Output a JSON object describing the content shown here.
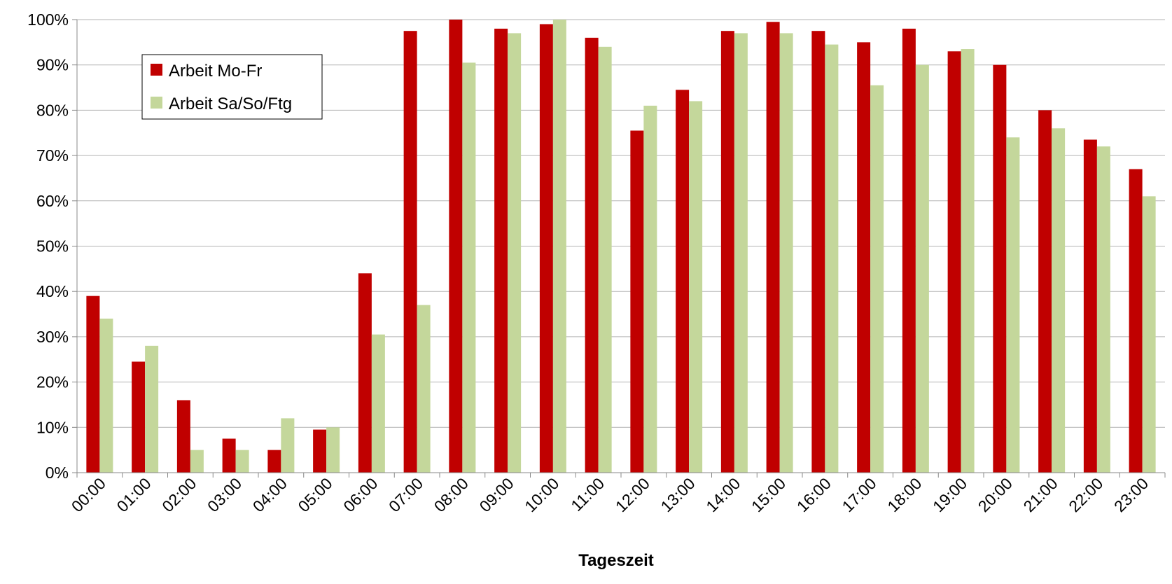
{
  "chart_data": {
    "type": "bar",
    "title": "",
    "xlabel": "Tageszeit",
    "ylabel": "",
    "ylim": [
      0,
      100
    ],
    "yticks": [
      "0%",
      "10%",
      "20%",
      "30%",
      "40%",
      "50%",
      "60%",
      "70%",
      "80%",
      "90%",
      "100%"
    ],
    "grid": true,
    "legend_position": "top-left",
    "categories": [
      "00:00",
      "01:00",
      "02:00",
      "03:00",
      "04:00",
      "05:00",
      "06:00",
      "07:00",
      "08:00",
      "09:00",
      "10:00",
      "11:00",
      "12:00",
      "13:00",
      "14:00",
      "15:00",
      "16:00",
      "17:00",
      "18:00",
      "19:00",
      "20:00",
      "21:00",
      "22:00",
      "23:00"
    ],
    "series": [
      {
        "name": "Arbeit Mo-Fr",
        "color": "#c00000",
        "values": [
          39,
          24.5,
          16,
          7.5,
          5,
          9.5,
          44,
          97.5,
          100,
          98,
          99,
          96,
          75.5,
          84.5,
          97.5,
          99.5,
          97.5,
          95,
          98,
          93,
          90,
          80,
          73.5,
          67
        ]
      },
      {
        "name": "Arbeit Sa/So/Ftg",
        "color": "#c4d79b",
        "values": [
          34,
          28,
          5,
          5,
          12,
          10,
          30.5,
          37,
          90.5,
          97,
          100,
          94,
          81,
          82,
          97,
          97,
          94.5,
          85.5,
          90,
          93.5,
          74,
          76,
          72,
          61
        ]
      }
    ]
  }
}
